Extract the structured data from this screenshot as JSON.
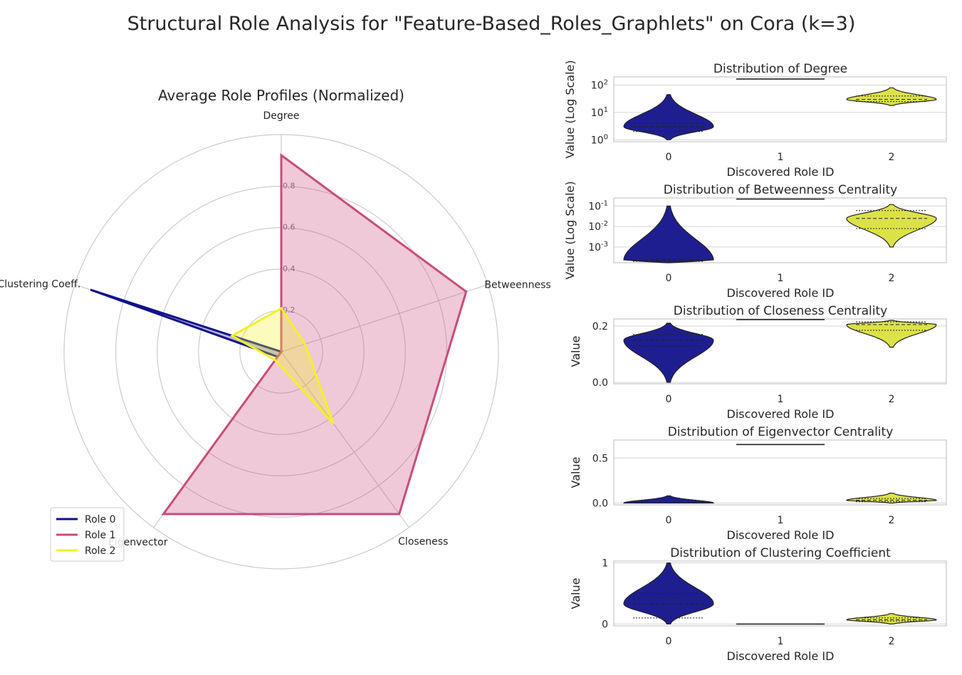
{
  "suptitle": "Structural Role Analysis for \"Feature-Based_Roles_Graphlets\" on Cora (k=3)",
  "colors": {
    "role0": "#12128a",
    "role1": "#c94c7c",
    "role2": "#f2f226",
    "role2_violin": "#d9e03e",
    "grid": "#cccccc"
  },
  "chart_data": [
    {
      "type": "radar",
      "title": "Average Role Profiles (Normalized)",
      "axes": [
        "Degree",
        "Betweenness",
        "Closeness",
        "Eigenvector",
        "Clustering Coeff."
      ],
      "rlim": [
        0,
        1.05
      ],
      "rticks": [
        0.2,
        0.4,
        0.6,
        0.8
      ],
      "rtick_labels": [
        "0.2",
        "0.4",
        "0.6",
        "0.8"
      ],
      "grid": true,
      "legend_position": "lower-left",
      "series": [
        {
          "name": "Role 0",
          "values": [
            0.0,
            0.0,
            0.0,
            0.03,
            0.97
          ]
        },
        {
          "name": "Role 1",
          "values": [
            0.95,
            0.94,
            0.97,
            0.97,
            0.0
          ]
        },
        {
          "name": "Role 2",
          "values": [
            0.21,
            0.12,
            0.43,
            0.05,
            0.25
          ]
        }
      ]
    },
    {
      "type": "violin",
      "title": "Distribution of Degree",
      "xlabel": "Discovered Role ID",
      "ylabel": "Value (Log Scale)",
      "yscale": "log",
      "categories": [
        "0",
        "1",
        "2"
      ],
      "ytick_labels": [
        "10^0",
        "10^1",
        "10^2"
      ],
      "ylim": [
        0.85,
        200
      ],
      "yticks": [
        1,
        10,
        100
      ],
      "violins": [
        {
          "role": "0",
          "min": 1,
          "max": 45,
          "median": 3,
          "q1": 2,
          "q3": 4
        },
        {
          "role": "1",
          "value": 168
        },
        {
          "role": "2",
          "min": 18,
          "max": 80,
          "median": 30,
          "q1": 25,
          "q3": 40
        }
      ]
    },
    {
      "type": "violin",
      "title": "Distribution of Betweenness Centrality",
      "xlabel": "Discovered Role ID",
      "ylabel": "Value (Log Scale)",
      "yscale": "log",
      "categories": [
        "0",
        "1",
        "2"
      ],
      "ytick_labels": [
        "10^-3",
        "10^-2",
        "10^-1"
      ],
      "ylim": [
        0.00017,
        0.25
      ],
      "yticks": [
        0.001,
        0.01,
        0.1
      ],
      "violins": [
        {
          "role": "0",
          "min": 0.00017,
          "max": 0.1,
          "median": 0.00022,
          "q1": 0.0002,
          "q3": 0.00025
        },
        {
          "role": "1",
          "value": 0.22
        },
        {
          "role": "2",
          "min": 0.001,
          "max": 0.12,
          "median": 0.025,
          "q1": 0.008,
          "q3": 0.06
        }
      ]
    },
    {
      "type": "violin",
      "title": "Distribution of Closeness Centrality",
      "xlabel": "Discovered Role ID",
      "ylabel": "Value",
      "yscale": "linear",
      "categories": [
        "0",
        "1",
        "2"
      ],
      "ytick_labels": [
        "0.0",
        "0.2"
      ],
      "ylim": [
        -0.005,
        0.225
      ],
      "yticks": [
        0.0,
        0.2
      ],
      "violins": [
        {
          "role": "0",
          "min": 0.0,
          "max": 0.21,
          "median": 0.15,
          "q1": 0.13,
          "q3": 0.17
        },
        {
          "role": "1",
          "value": 0.223
        },
        {
          "role": "2",
          "min": 0.125,
          "max": 0.22,
          "median": 0.205,
          "q1": 0.185,
          "q3": 0.215
        }
      ]
    },
    {
      "type": "violin",
      "title": "Distribution of Eigenvector Centrality",
      "xlabel": "Discovered Role ID",
      "ylabel": "Value",
      "yscale": "linear",
      "categories": [
        "0",
        "1",
        "2"
      ],
      "ytick_labels": [
        "0.0",
        "0.5"
      ],
      "ylim": [
        -0.02,
        0.7
      ],
      "yticks": [
        0.0,
        0.5
      ],
      "violins": [
        {
          "role": "0",
          "min": 0.0,
          "max": 0.08,
          "median": 0.0,
          "q1": 0.0,
          "q3": 0.005
        },
        {
          "role": "1",
          "value": 0.65
        },
        {
          "role": "2",
          "min": 0.0,
          "max": 0.11,
          "median": 0.03,
          "q1": 0.015,
          "q3": 0.05
        }
      ]
    },
    {
      "type": "violin",
      "title": "Distribution of Clustering Coefficient",
      "xlabel": "Discovered Role ID",
      "ylabel": "Value",
      "yscale": "linear",
      "categories": [
        "0",
        "1",
        "2"
      ],
      "ytick_labels": [
        "0",
        "1"
      ],
      "ylim": [
        -0.03,
        1.03
      ],
      "yticks": [
        0,
        1
      ],
      "violins": [
        {
          "role": "0",
          "min": 0.0,
          "max": 1.0,
          "median": 0.33,
          "q1": 0.1,
          "q3": 0.5
        },
        {
          "role": "1",
          "value": 0.0
        },
        {
          "role": "2",
          "min": 0.0,
          "max": 0.17,
          "median": 0.07,
          "q1": 0.05,
          "q3": 0.1
        }
      ]
    }
  ]
}
